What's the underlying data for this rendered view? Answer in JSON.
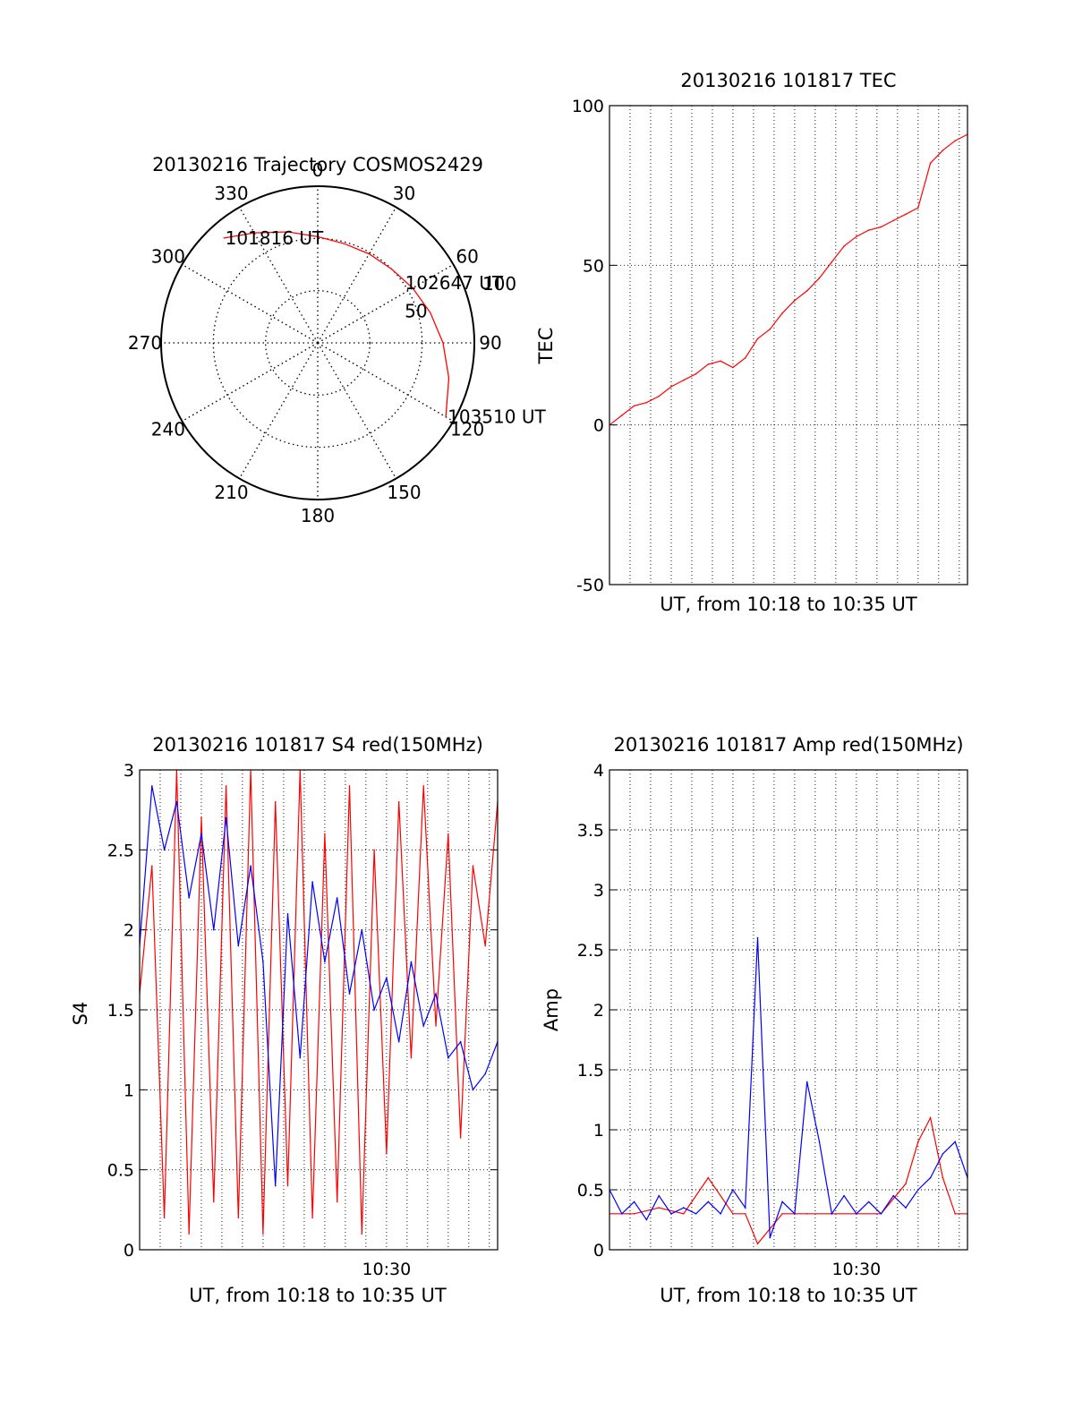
{
  "figure": {
    "colors": {
      "red": "#ff0000",
      "blue": "#0000ff",
      "axis": "#000000",
      "grid": "#000000",
      "background": "#ffffff"
    }
  },
  "chart_data": [
    {
      "type": "polar",
      "title": "20130216 Trajectory COSMOS2429",
      "azimuth_labels": [
        "0",
        "30",
        "60",
        "90",
        "120",
        "150",
        "180",
        "210",
        "240",
        "270",
        "300",
        "330"
      ],
      "radial_labels": [
        "50",
        "100"
      ],
      "radial_label_azimuth": 72,
      "grid": true,
      "trajectory": {
        "color": "red",
        "points": [
          {
            "azimuth": 318,
            "elevation": 9
          },
          {
            "azimuth": 330,
            "elevation": 17
          },
          {
            "azimuth": 345,
            "elevation": 24
          },
          {
            "azimuth": 0,
            "elevation": 29
          },
          {
            "azimuth": 15,
            "elevation": 31
          },
          {
            "azimuth": 30,
            "elevation": 31
          },
          {
            "azimuth": 45,
            "elevation": 30
          },
          {
            "azimuth": 60,
            "elevation": 27
          },
          {
            "azimuth": 75,
            "elevation": 23
          },
          {
            "azimuth": 90,
            "elevation": 18
          },
          {
            "azimuth": 105,
            "elevation": 12
          },
          {
            "azimuth": 120,
            "elevation": 5
          }
        ]
      },
      "time_annotations": [
        {
          "text": "101816 UT",
          "azimuth": 318,
          "elevation": 9
        },
        {
          "text": "102647 UT",
          "azimuth": 55,
          "elevation": 30
        },
        {
          "text": "103510 UT",
          "azimuth": 120,
          "elevation": 5
        }
      ]
    },
    {
      "type": "line",
      "title": "20130216 101817 TEC",
      "xlabel": "UT, from 10:18 to 10:35 UT",
      "ylabel": "TEC",
      "xlim": [
        10.3,
        10.59
      ],
      "ylim": [
        -50,
        100
      ],
      "yticks": [
        "-50",
        "0",
        "50",
        "100"
      ],
      "xticks": [],
      "grid": true,
      "series": [
        {
          "color": "red",
          "x": [
            10.3,
            10.31,
            10.32,
            10.33,
            10.34,
            10.35,
            10.36,
            10.37,
            10.38,
            10.39,
            10.4,
            10.41,
            10.42,
            10.43,
            10.44,
            10.45,
            10.46,
            10.47,
            10.48,
            10.49,
            10.5,
            10.51,
            10.52,
            10.53,
            10.54,
            10.55,
            10.56,
            10.57,
            10.58,
            10.59
          ],
          "y": [
            0,
            3,
            6,
            7,
            9,
            12,
            14,
            16,
            19,
            20,
            18,
            21,
            27,
            30,
            35,
            39,
            42,
            46,
            51,
            56,
            59,
            61,
            62,
            64,
            66,
            68,
            82,
            86,
            89,
            91
          ]
        }
      ]
    },
    {
      "type": "line",
      "title": "20130216 101817 S4 red(150MHz)",
      "xlabel": "UT, from 10:18 to 10:35 UT",
      "ylabel": "S4",
      "xlim": [
        10.3,
        10.59
      ],
      "ylim": [
        0,
        3
      ],
      "yticks": [
        "0",
        "0.5",
        "1",
        "1.5",
        "2",
        "2.5",
        "3"
      ],
      "xticks": [
        {
          "value": 10.5,
          "label": "10:30"
        }
      ],
      "grid": true,
      "series": [
        {
          "color": "red",
          "x": [
            10.3,
            10.31,
            10.32,
            10.33,
            10.34,
            10.35,
            10.36,
            10.37,
            10.38,
            10.39,
            10.4,
            10.41,
            10.42,
            10.43,
            10.44,
            10.45,
            10.46,
            10.47,
            10.48,
            10.49,
            10.5,
            10.51,
            10.52,
            10.53,
            10.54,
            10.55,
            10.56,
            10.57,
            10.58,
            10.59
          ],
          "y": [
            1.6,
            2.4,
            0.2,
            3.0,
            0.1,
            2.7,
            0.3,
            2.9,
            0.2,
            3.0,
            0.1,
            2.8,
            0.4,
            3.0,
            0.2,
            2.6,
            0.3,
            2.9,
            0.1,
            2.5,
            0.6,
            2.8,
            1.2,
            2.9,
            1.4,
            2.6,
            0.7,
            2.4,
            1.9,
            2.8
          ]
        },
        {
          "color": "blue",
          "x": [
            10.3,
            10.31,
            10.32,
            10.33,
            10.34,
            10.35,
            10.36,
            10.37,
            10.38,
            10.39,
            10.4,
            10.41,
            10.42,
            10.43,
            10.44,
            10.45,
            10.46,
            10.47,
            10.48,
            10.49,
            10.5,
            10.51,
            10.52,
            10.53,
            10.54,
            10.55,
            10.56,
            10.57,
            10.58,
            10.59
          ],
          "y": [
            1.9,
            2.9,
            2.5,
            2.8,
            2.2,
            2.6,
            2.0,
            2.7,
            1.9,
            2.4,
            1.8,
            0.4,
            2.1,
            1.2,
            2.3,
            1.8,
            2.2,
            1.6,
            2.0,
            1.5,
            1.7,
            1.3,
            1.8,
            1.4,
            1.6,
            1.2,
            1.3,
            1.0,
            1.1,
            1.3
          ]
        }
      ]
    },
    {
      "type": "line",
      "title": "20130216 101817 Amp red(150MHz)",
      "xlabel": "UT, from 10:18 to 10:35 UT",
      "ylabel": "Amp",
      "xlim": [
        10.3,
        10.59
      ],
      "ylim": [
        0,
        4
      ],
      "yticks": [
        "0",
        "0.5",
        "1",
        "1.5",
        "2",
        "2.5",
        "3",
        "3.5",
        "4"
      ],
      "xticks": [
        {
          "value": 10.5,
          "label": "10:30"
        }
      ],
      "grid": true,
      "series": [
        {
          "color": "red",
          "x": [
            10.3,
            10.32,
            10.34,
            10.36,
            10.38,
            10.4,
            10.41,
            10.42,
            10.44,
            10.46,
            10.48,
            10.5,
            10.52,
            10.54,
            10.55,
            10.56,
            10.57,
            10.58,
            10.59
          ],
          "y": [
            0.3,
            0.3,
            0.35,
            0.3,
            0.6,
            0.3,
            0.3,
            0.05,
            0.3,
            0.3,
            0.3,
            0.3,
            0.3,
            0.55,
            0.9,
            1.1,
            0.6,
            0.3,
            0.3
          ]
        },
        {
          "color": "blue",
          "x": [
            10.3,
            10.31,
            10.32,
            10.33,
            10.34,
            10.35,
            10.36,
            10.37,
            10.38,
            10.39,
            10.4,
            10.41,
            10.42,
            10.43,
            10.44,
            10.45,
            10.46,
            10.47,
            10.48,
            10.49,
            10.5,
            10.51,
            10.52,
            10.53,
            10.54,
            10.55,
            10.56,
            10.57,
            10.58,
            10.59
          ],
          "y": [
            0.5,
            0.3,
            0.4,
            0.25,
            0.45,
            0.3,
            0.35,
            0.3,
            0.4,
            0.3,
            0.5,
            0.35,
            2.6,
            0.1,
            0.4,
            0.3,
            1.4,
            0.9,
            0.3,
            0.45,
            0.3,
            0.4,
            0.3,
            0.45,
            0.35,
            0.5,
            0.6,
            0.8,
            0.9,
            0.6
          ]
        }
      ]
    }
  ]
}
